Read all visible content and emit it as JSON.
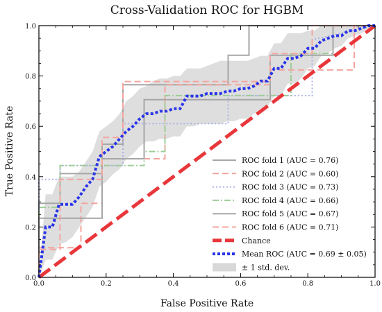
{
  "chart_data": {
    "type": "line",
    "title": "Cross-Validation ROC for HGBM",
    "xlabel": "False Positive Rate",
    "ylabel": "True Positive Rate",
    "xlim": [
      0,
      1
    ],
    "ylim": [
      0,
      1
    ],
    "xticks": [
      "0.0",
      "0.2",
      "0.4",
      "0.6",
      "0.8",
      "1.0"
    ],
    "yticks": [
      "0.0",
      "0.2",
      "0.4",
      "0.6",
      "0.8",
      "1.0"
    ],
    "grid": false,
    "legend_position": "lower-right",
    "series": [
      {
        "name": "ROC fold 1 (AUC = 0.76)",
        "color": "#a6a6a6",
        "dash": "solid",
        "x": [
          0,
          0,
          0.063,
          0.063,
          0.188,
          0.188,
          0.25,
          0.25,
          0.563,
          0.563,
          0.625,
          0.625,
          1
        ],
        "y": [
          0,
          0.294,
          0.294,
          0.412,
          0.412,
          0.529,
          0.529,
          0.765,
          0.765,
          0.882,
          0.882,
          1,
          1
        ]
      },
      {
        "name": "ROC fold 2 (AUC = 0.60)",
        "color": "#f4a49e",
        "dash": "dash",
        "x": [
          0,
          0,
          0.125,
          0.125,
          0.188,
          0.188,
          0.375,
          0.375,
          0.688,
          0.688,
          0.938,
          0.938,
          1
        ],
        "y": [
          0,
          0.118,
          0.118,
          0.294,
          0.294,
          0.471,
          0.471,
          0.765,
          0.765,
          0.824,
          0.824,
          1,
          1
        ]
      },
      {
        "name": "ROC fold 3 (AUC = 0.73)",
        "color": "#aab0e8",
        "dash": "dot",
        "x": [
          0,
          0,
          0.063,
          0.063,
          0.25,
          0.25,
          0.563,
          0.563,
          0.813,
          0.813,
          1
        ],
        "y": [
          0,
          0.389,
          0.389,
          0.444,
          0.444,
          0.611,
          0.611,
          0.722,
          0.722,
          0.944,
          1
        ]
      },
      {
        "name": "ROC fold 4 (AUC = 0.66)",
        "color": "#9dcc97",
        "dash": "dashdot",
        "x": [
          0,
          0,
          0.063,
          0.063,
          0.313,
          0.313,
          0.375,
          0.375,
          0.75,
          0.75,
          0.875,
          0.875,
          1
        ],
        "y": [
          0,
          0.278,
          0.278,
          0.444,
          0.444,
          0.5,
          0.5,
          0.722,
          0.722,
          0.889,
          0.889,
          1,
          1
        ]
      },
      {
        "name": "ROC fold 5 (AUC = 0.67)",
        "color": "#a6a6a6",
        "dash": "solid",
        "x": [
          0,
          0,
          0.125,
          0.125,
          0.188,
          0.188,
          0.313,
          0.313,
          0.688,
          0.688,
          0.875,
          0.875,
          1
        ],
        "y": [
          0,
          0.235,
          0.235,
          0.235,
          0.235,
          0.471,
          0.471,
          0.706,
          0.706,
          0.882,
          0.882,
          1,
          1
        ]
      },
      {
        "name": "ROC fold 6 (AUC = 0.71)",
        "color": "#f4a49e",
        "dash": "dash",
        "x": [
          0,
          0,
          0.063,
          0.063,
          0.188,
          0.188,
          0.25,
          0.25,
          0.688,
          0.688,
          0.813,
          0.813,
          1
        ],
        "y": [
          0,
          0.111,
          0.111,
          0.389,
          0.389,
          0.556,
          0.556,
          0.778,
          0.778,
          0.889,
          0.889,
          1,
          1
        ]
      }
    ],
    "chance": {
      "name": "Chance",
      "color": "#e8363a",
      "x": [
        0,
        1
      ],
      "y": [
        0,
        1
      ]
    },
    "mean": {
      "name": "Mean ROC (AUC = 0.69 ± 0.05)",
      "color": "#2a35e8",
      "x": [
        0,
        0.02,
        0.04,
        0.06,
        0.08,
        0.1,
        0.12,
        0.14,
        0.16,
        0.18,
        0.2,
        0.22,
        0.24,
        0.26,
        0.28,
        0.3,
        0.32,
        0.34,
        0.36,
        0.38,
        0.4,
        0.42,
        0.44,
        0.46,
        0.48,
        0.5,
        0.52,
        0.54,
        0.56,
        0.58,
        0.6,
        0.62,
        0.64,
        0.66,
        0.68,
        0.7,
        0.72,
        0.74,
        0.76,
        0.78,
        0.8,
        0.82,
        0.84,
        0.86,
        0.88,
        0.9,
        0.92,
        0.94,
        0.96,
        0.98,
        1.0
      ],
      "y": [
        0,
        0.2,
        0.2,
        0.29,
        0.29,
        0.29,
        0.32,
        0.36,
        0.39,
        0.48,
        0.5,
        0.52,
        0.55,
        0.58,
        0.6,
        0.63,
        0.65,
        0.65,
        0.66,
        0.66,
        0.67,
        0.67,
        0.72,
        0.72,
        0.72,
        0.73,
        0.73,
        0.73,
        0.74,
        0.74,
        0.75,
        0.75,
        0.76,
        0.78,
        0.78,
        0.83,
        0.83,
        0.87,
        0.87,
        0.88,
        0.91,
        0.91,
        0.94,
        0.95,
        0.96,
        0.96,
        0.98,
        0.98,
        0.99,
        1.0,
        1.0
      ],
      "std_upper": [
        0,
        0.33,
        0.33,
        0.4,
        0.4,
        0.4,
        0.42,
        0.46,
        0.5,
        0.58,
        0.6,
        0.62,
        0.65,
        0.7,
        0.72,
        0.75,
        0.76,
        0.78,
        0.79,
        0.79,
        0.8,
        0.8,
        0.83,
        0.83,
        0.83,
        0.84,
        0.85,
        0.86,
        0.86,
        0.86,
        0.86,
        0.86,
        0.87,
        0.88,
        0.88,
        0.93,
        0.93,
        0.97,
        0.97,
        0.97,
        0.98,
        0.98,
        1.0,
        1.0,
        1.0,
        1.0,
        1.0,
        1.0,
        1.0,
        1.0,
        1.0
      ],
      "std_lower": [
        0,
        0.07,
        0.07,
        0.13,
        0.14,
        0.16,
        0.2,
        0.24,
        0.28,
        0.36,
        0.38,
        0.41,
        0.43,
        0.47,
        0.49,
        0.52,
        0.54,
        0.54,
        0.55,
        0.55,
        0.56,
        0.56,
        0.6,
        0.6,
        0.61,
        0.61,
        0.61,
        0.61,
        0.62,
        0.62,
        0.63,
        0.63,
        0.65,
        0.67,
        0.68,
        0.72,
        0.72,
        0.77,
        0.77,
        0.79,
        0.83,
        0.84,
        0.88,
        0.89,
        0.91,
        0.92,
        0.95,
        0.96,
        0.97,
        0.99,
        1.0
      ]
    },
    "std_band": {
      "name": "± 1 std. dev.",
      "color": "#d8d8d8"
    }
  }
}
